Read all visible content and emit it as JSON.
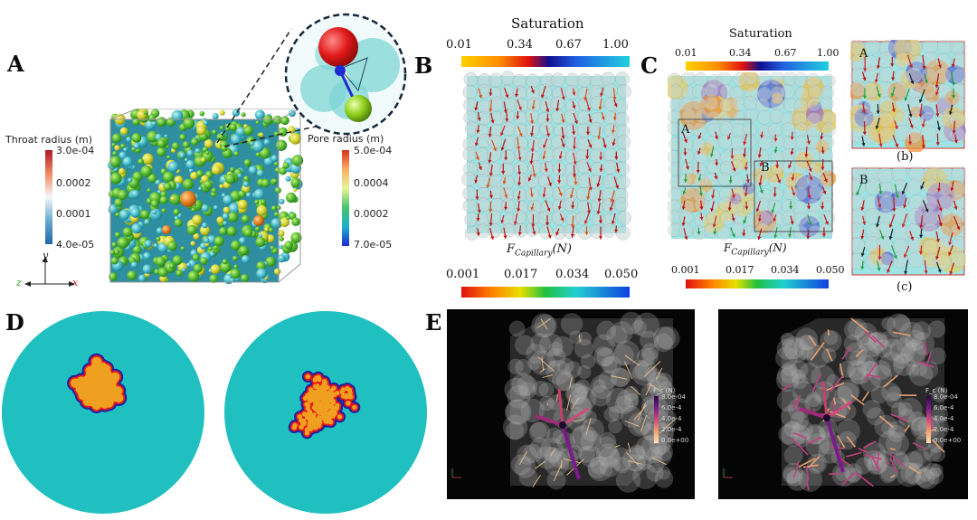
{
  "panels": {
    "a": "A",
    "b": "B",
    "c": "C",
    "d": "D",
    "e": "E"
  },
  "panel_a": {
    "throat_title": "Throat radius (m)",
    "throat_ticks": [
      "3.0e-04",
      "0.0002",
      "0.0001",
      "4.0e-05"
    ],
    "pore_title": "Pore radius (m)",
    "pore_ticks": [
      "5.0e-04",
      "0.0004",
      "0.0002",
      "7.0e-05"
    ],
    "axis_y": "y",
    "axis_z": "z",
    "axis_x": "x",
    "colors": {
      "throat_top": "#b2182b",
      "throat_bottom": "#2166ac",
      "pore_top": "#e31a1c",
      "pore_bottom": "#1f2bd8"
    }
  },
  "panel_b": {
    "saturation_title": "Saturation",
    "saturation_ticks": [
      "0.01",
      "0.34",
      "0.67",
      "1.00"
    ],
    "force_label_main": "F",
    "force_label_sub": "Capillary",
    "force_label_unit": "(N)",
    "force_ticks": [
      "0.001",
      "0.017",
      "0.034",
      "0.050"
    ]
  },
  "panel_c": {
    "saturation_title": "Saturation",
    "saturation_ticks": [
      "0.01",
      "0.34",
      "0.67",
      "1.00"
    ],
    "force_label_main": "F",
    "force_label_sub": "Capillary",
    "force_label_unit": "(N)",
    "force_ticks": [
      "0.001",
      "0.017",
      "0.034",
      "0.050"
    ],
    "region_a": "A",
    "region_b": "B",
    "inset_a": "A",
    "inset_b": "B",
    "caption_b": "(b)",
    "caption_c": "(c)"
  },
  "panel_e": {
    "legend_title": "F_c (N)",
    "ticks": [
      "8.0e-04",
      "6.0e-4",
      "4.0e-4",
      "2.0e-4",
      "0.0e+00"
    ]
  }
}
